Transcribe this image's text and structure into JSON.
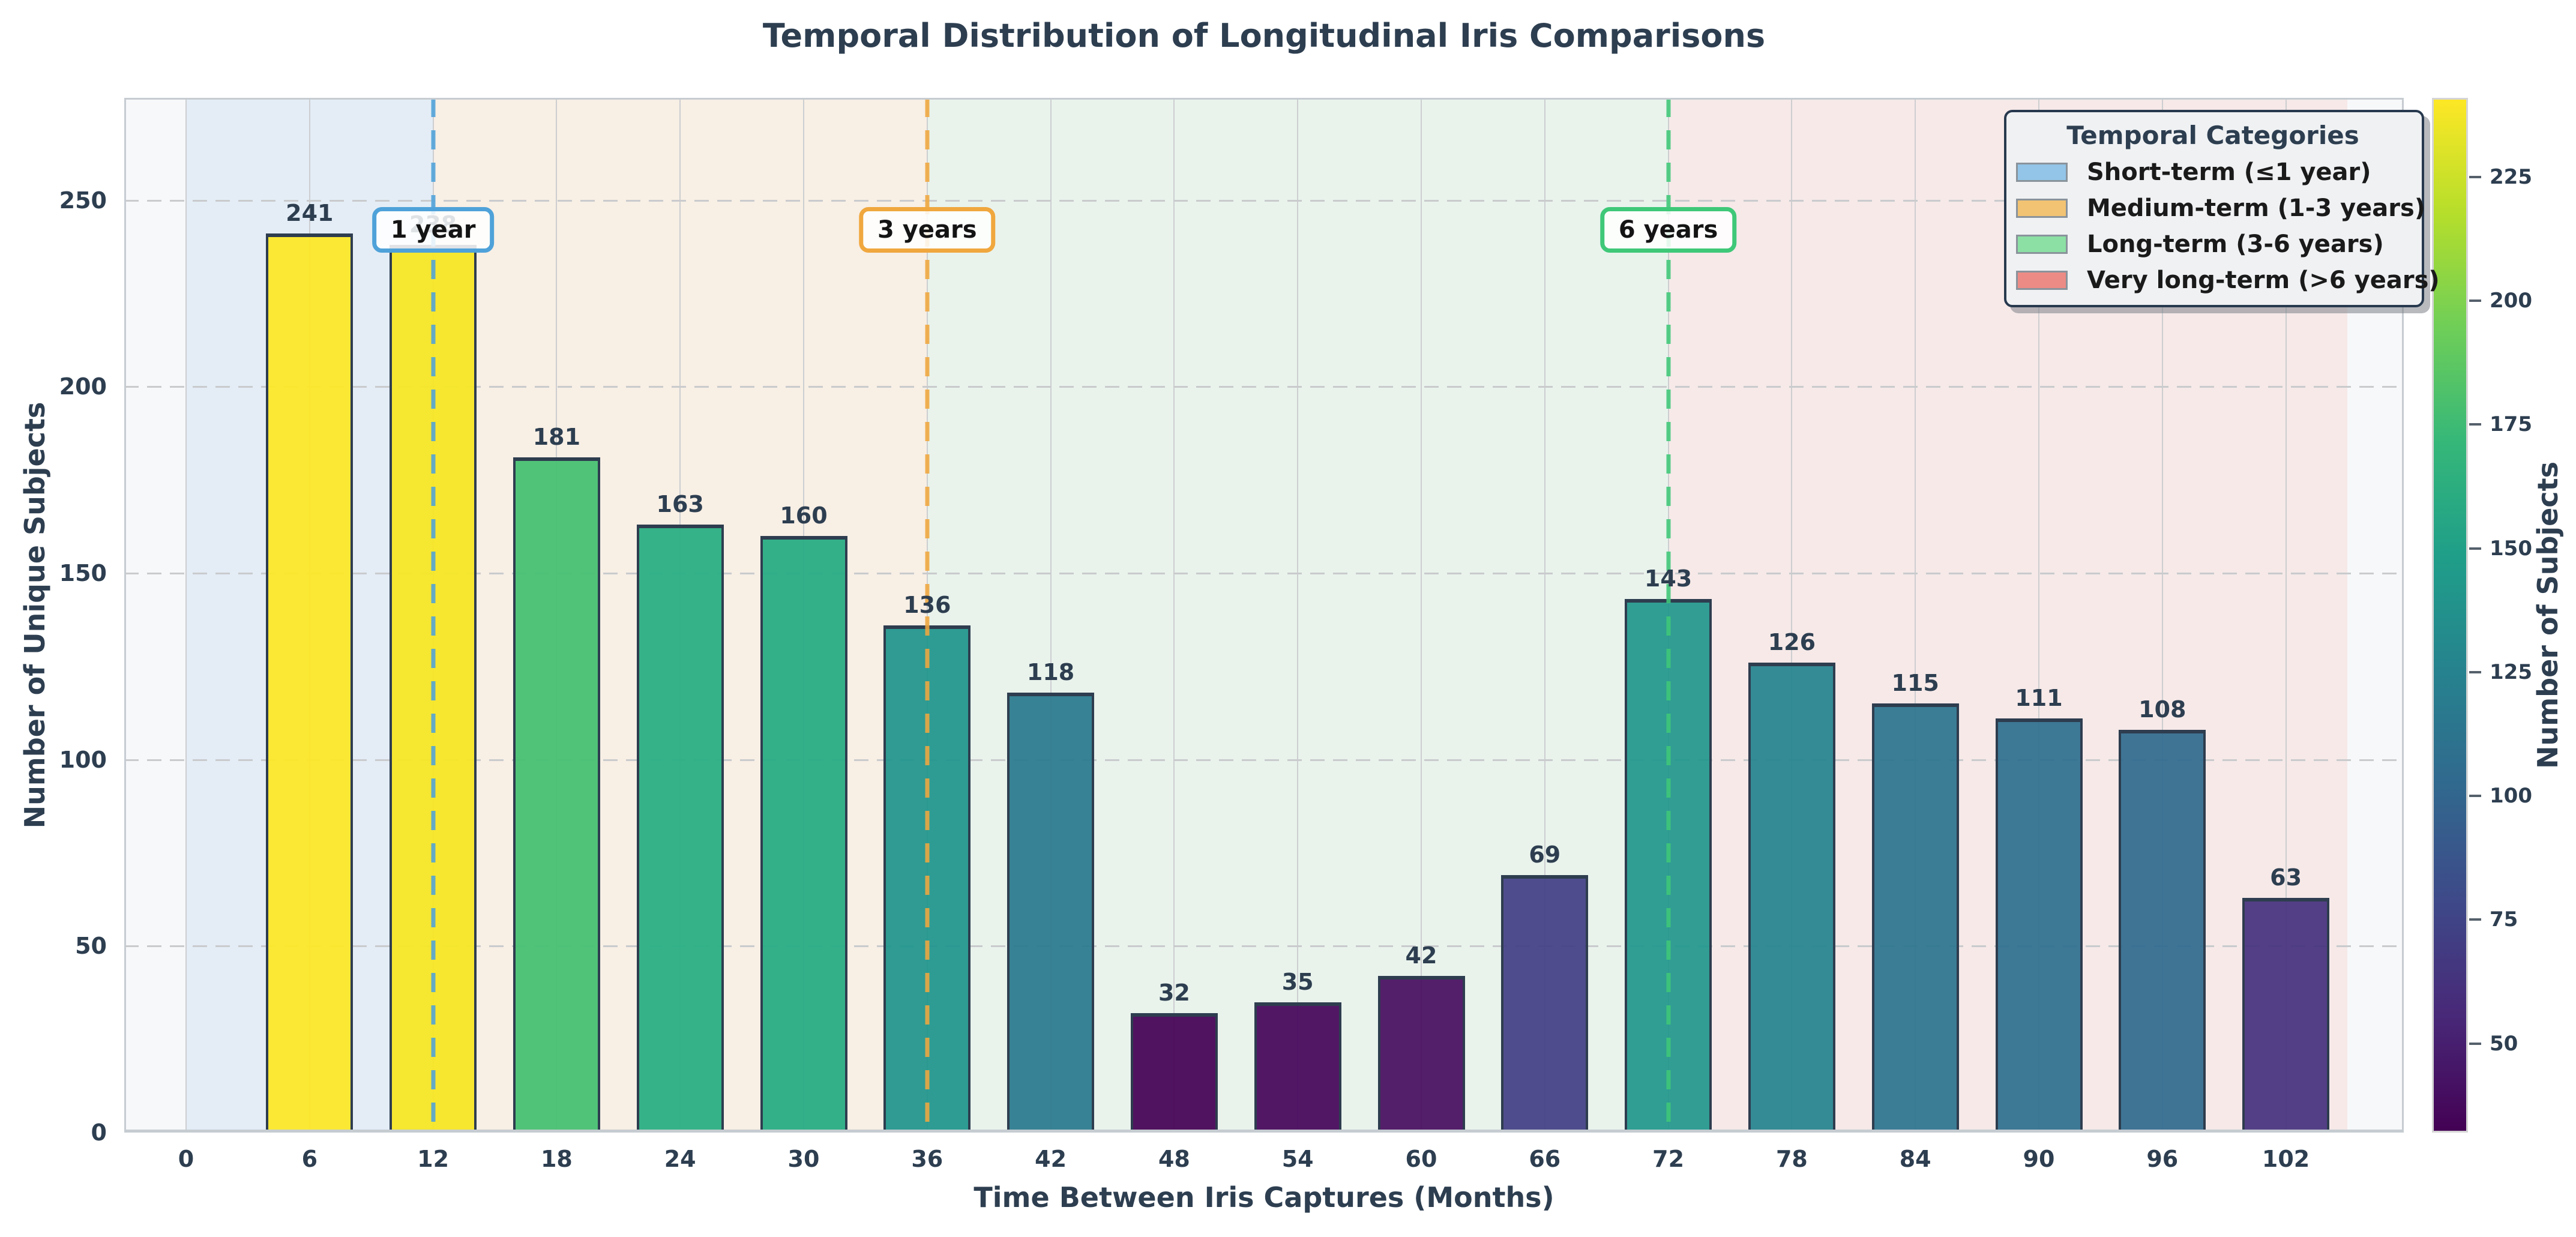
{
  "title": "Temporal Distribution of Longitudinal Iris Comparisons",
  "chart_data": {
    "type": "bar",
    "title": "Temporal Distribution of Longitudinal Iris Comparisons",
    "xlabel": "Time Between Iris Captures (Months)",
    "ylabel": "Number of Unique Subjects",
    "x": [
      6,
      12,
      18,
      24,
      30,
      36,
      42,
      48,
      54,
      60,
      66,
      72,
      78,
      84,
      90,
      96,
      102
    ],
    "values": [
      241,
      238,
      181,
      163,
      160,
      136,
      118,
      32,
      35,
      42,
      69,
      143,
      126,
      115,
      111,
      108,
      63
    ],
    "bar_labels": [
      "241",
      "238",
      "181",
      "163",
      "160",
      "136",
      "118",
      "32",
      "35",
      "42",
      "69",
      "143",
      "126",
      "115",
      "111",
      "108",
      "63"
    ],
    "bar_colors": [
      "#fde725",
      "#f8e621",
      "#44bf70",
      "#27ad81",
      "#25ab82",
      "#1f948c",
      "#2a788e",
      "#440154",
      "#45055a",
      "#470d60",
      "#433e85",
      "#21978c",
      "#25838e",
      "#2c748e",
      "#2e6f8e",
      "#306b8e",
      "#46317e"
    ],
    "bar_edge_color": "#2e3d4f",
    "colormap": "viridis",
    "vmin": 32,
    "vmax": 241,
    "x_ticks": [
      0,
      6,
      12,
      18,
      24,
      30,
      36,
      42,
      48,
      54,
      60,
      66,
      72,
      78,
      84,
      90,
      96,
      102
    ],
    "y_ticks": [
      0,
      50,
      100,
      150,
      200,
      250
    ],
    "xlim": [
      -3,
      107.7
    ],
    "ylim": [
      0,
      277.5
    ],
    "grid": "horizontal dashed, vertical solid",
    "background_regions": [
      {
        "name": "short-term-band",
        "from": 0,
        "to": 12,
        "color": "#e4edf6"
      },
      {
        "name": "medium-term-band",
        "from": 12,
        "to": 36,
        "color": "#f8efe5"
      },
      {
        "name": "long-term-band",
        "from": 36,
        "to": 72,
        "color": "#e9f3ec"
      },
      {
        "name": "very-long-term-band",
        "from": 72,
        "to": 105,
        "color": "#f6e9e8"
      }
    ],
    "vlines": [
      {
        "x": 12,
        "label": "1 year",
        "color": "#4fa2d9"
      },
      {
        "x": 36,
        "label": "3 years",
        "color": "#f0a73e"
      },
      {
        "x": 72,
        "label": "6 years",
        "color": "#3fc878"
      }
    ],
    "annotation_y_value": 242
  },
  "legend": {
    "title": "Temporal Categories",
    "items": [
      {
        "label": "Short-term (≤1 year)",
        "color": "#92c5e8"
      },
      {
        "label": "Medium-term (1-3 years)",
        "color": "#f2c372"
      },
      {
        "label": "Long-term (3-6 years)",
        "color": "#8ce0a4"
      },
      {
        "label": "Very long-term (>6 years)",
        "color": "#ec8b85"
      }
    ]
  },
  "colorbar": {
    "label": "Number of Subjects",
    "ticks": [
      50,
      75,
      100,
      125,
      150,
      175,
      200,
      225
    ],
    "vmin": 32,
    "vmax": 241,
    "gradient_stops": [
      "#440154",
      "#482878",
      "#3e4989",
      "#31688e",
      "#26828e",
      "#1f9e89",
      "#35b779",
      "#6ece58",
      "#b5de2b",
      "#fde725"
    ]
  },
  "text_color": "#2d3e50"
}
